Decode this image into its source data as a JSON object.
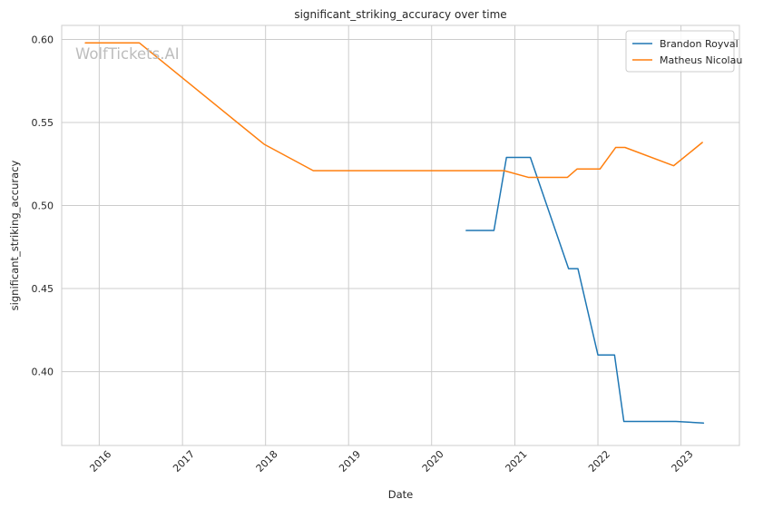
{
  "chart_data": {
    "type": "line",
    "title": "significant_striking_accuracy over time",
    "xlabel": "Date",
    "ylabel": "significant_striking_accuracy",
    "watermark": "WolfTickets.AI",
    "xlim": [
      "2015-07-20",
      "2023-09-15"
    ],
    "ylim": [
      0.3555,
      0.6085
    ],
    "x_ticks": [
      "2016-01-01",
      "2017-01-01",
      "2018-01-01",
      "2019-01-01",
      "2020-01-01",
      "2021-01-01",
      "2022-01-01",
      "2023-01-01"
    ],
    "x_tick_labels": [
      "2016",
      "2017",
      "2018",
      "2019",
      "2020",
      "2021",
      "2022",
      "2023"
    ],
    "y_ticks": [
      0.4,
      0.45,
      0.5,
      0.55,
      0.6
    ],
    "y_tick_labels": [
      "0.40",
      "0.45",
      "0.50",
      "0.55",
      "0.60"
    ],
    "grid": true,
    "legend_position": "top-right",
    "series": [
      {
        "name": "Brandon Royval",
        "color": "#1f77b4",
        "points": [
          [
            "2020-06-01",
            0.485
          ],
          [
            "2020-10-01",
            0.485
          ],
          [
            "2020-11-25",
            0.529
          ],
          [
            "2021-03-10",
            0.529
          ],
          [
            "2021-08-25",
            0.462
          ],
          [
            "2021-10-05",
            0.462
          ],
          [
            "2022-01-01",
            0.41
          ],
          [
            "2022-03-15",
            0.41
          ],
          [
            "2022-04-25",
            0.37
          ],
          [
            "2022-12-10",
            0.37
          ],
          [
            "2023-04-10",
            0.369
          ]
        ]
      },
      {
        "name": "Matheus Nicolau",
        "color": "#ff7f0e",
        "points": [
          [
            "2015-11-01",
            0.598
          ],
          [
            "2016-06-25",
            0.598
          ],
          [
            "2017-12-25",
            0.537
          ],
          [
            "2018-07-30",
            0.521
          ],
          [
            "2020-11-15",
            0.521
          ],
          [
            "2021-03-01",
            0.517
          ],
          [
            "2021-08-20",
            0.517
          ],
          [
            "2021-10-01",
            0.522
          ],
          [
            "2022-01-10",
            0.522
          ],
          [
            "2022-03-20",
            0.535
          ],
          [
            "2022-04-30",
            0.535
          ],
          [
            "2022-11-30",
            0.524
          ],
          [
            "2023-04-05",
            0.538
          ]
        ]
      }
    ]
  }
}
